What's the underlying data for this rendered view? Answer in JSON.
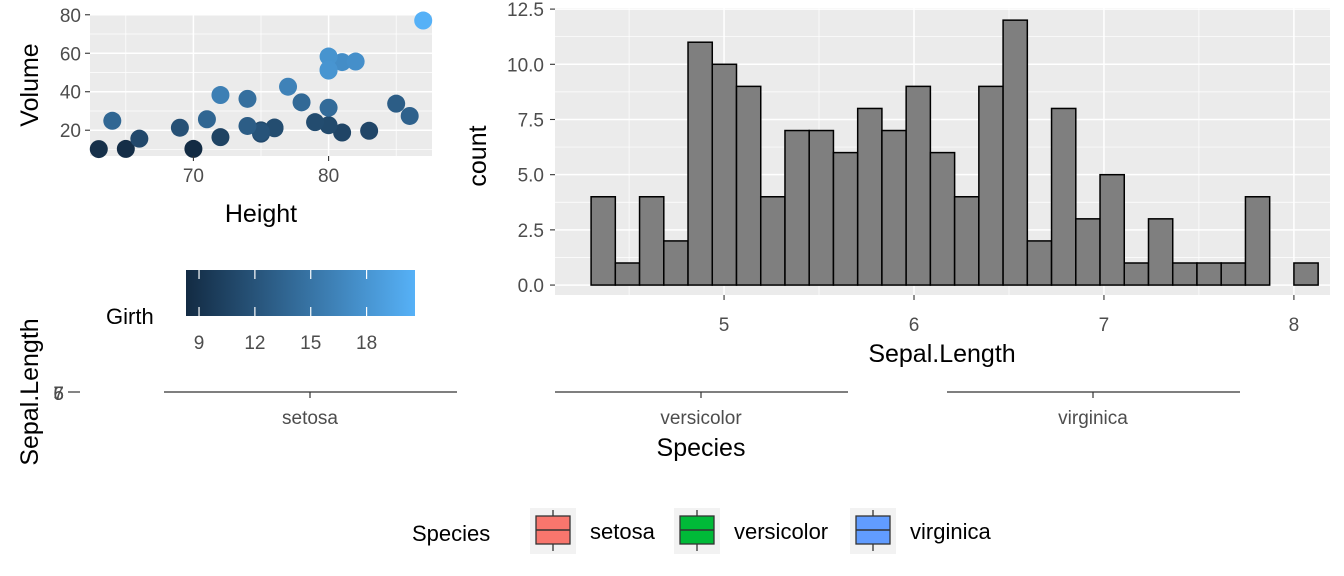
{
  "chart_data": [
    {
      "type": "scatter",
      "xlabel": "Height",
      "ylabel": "Volume",
      "xlim": [
        62,
        88
      ],
      "ylim": [
        8,
        80
      ],
      "xticks": [
        70,
        80
      ],
      "yticks": [
        20,
        40,
        60,
        80
      ],
      "grid": true,
      "color_legend": {
        "title": "Girth",
        "range": [
          8.3,
          20.6
        ],
        "ticks": [
          9,
          12,
          15,
          18
        ],
        "low_color": "#132B43",
        "high_color": "#56B1F7"
      },
      "points": [
        {
          "x": 70,
          "y": 10.3,
          "c": 8.3
        },
        {
          "x": 65,
          "y": 10.3,
          "c": 8.6
        },
        {
          "x": 63,
          "y": 10.2,
          "c": 8.8
        },
        {
          "x": 72,
          "y": 16.4,
          "c": 10.5
        },
        {
          "x": 81,
          "y": 18.8,
          "c": 10.7
        },
        {
          "x": 83,
          "y": 19.7,
          "c": 10.8
        },
        {
          "x": 66,
          "y": 15.6,
          "c": 11.0
        },
        {
          "x": 75,
          "y": 18.2,
          "c": 11.0
        },
        {
          "x": 80,
          "y": 22.6,
          "c": 11.1
        },
        {
          "x": 75,
          "y": 19.9,
          "c": 11.2
        },
        {
          "x": 79,
          "y": 24.2,
          "c": 11.3
        },
        {
          "x": 76,
          "y": 21.0,
          "c": 11.4
        },
        {
          "x": 76,
          "y": 21.4,
          "c": 11.4
        },
        {
          "x": 69,
          "y": 21.3,
          "c": 11.7
        },
        {
          "x": 75,
          "y": 19.1,
          "c": 12.0
        },
        {
          "x": 74,
          "y": 22.2,
          "c": 12.9
        },
        {
          "x": 85,
          "y": 33.8,
          "c": 12.9
        },
        {
          "x": 86,
          "y": 27.4,
          "c": 13.3
        },
        {
          "x": 71,
          "y": 25.7,
          "c": 13.7
        },
        {
          "x": 64,
          "y": 24.9,
          "c": 13.8
        },
        {
          "x": 78,
          "y": 34.5,
          "c": 14.0
        },
        {
          "x": 80,
          "y": 31.7,
          "c": 14.2
        },
        {
          "x": 74,
          "y": 36.3,
          "c": 14.5
        },
        {
          "x": 72,
          "y": 38.3,
          "c": 16.0
        },
        {
          "x": 77,
          "y": 42.6,
          "c": 16.3
        },
        {
          "x": 81,
          "y": 55.4,
          "c": 17.3
        },
        {
          "x": 82,
          "y": 55.7,
          "c": 17.5
        },
        {
          "x": 80,
          "y": 58.3,
          "c": 17.9
        },
        {
          "x": 80,
          "y": 51.5,
          "c": 18.0
        },
        {
          "x": 80,
          "y": 51.0,
          "c": 18.0
        },
        {
          "x": 87,
          "y": 77.0,
          "c": 20.6
        }
      ]
    },
    {
      "type": "bar",
      "subtype": "histogram",
      "xlabel": "Sepal.Length",
      "ylabel": "count",
      "xlim": [
        4.3,
        8.0
      ],
      "ylim": [
        0,
        12.5
      ],
      "xticks": [
        5,
        6,
        7,
        8
      ],
      "yticks": [
        0.0,
        2.5,
        5.0,
        7.5,
        10.0,
        12.5
      ],
      "grid": true,
      "bar_color": "#7f7f7f",
      "bin_start": 4.3,
      "bin_width": 0.1275862,
      "counts": [
        4,
        1,
        4,
        2,
        11,
        10,
        9,
        4,
        7,
        7,
        6,
        8,
        7,
        9,
        6,
        4,
        9,
        12,
        2,
        8,
        3,
        5,
        1,
        3,
        1,
        1,
        1,
        4,
        0,
        1
      ]
    },
    {
      "type": "box",
      "xlabel": "Species",
      "ylabel": "Sepal.Length",
      "y_tick_labels_overlapping": [
        "7",
        "6",
        "5"
      ],
      "categories": [
        "setosa",
        "versicolor",
        "virginica"
      ],
      "legend": {
        "title": "Species",
        "position": "bottom",
        "entries": [
          {
            "label": "setosa",
            "color": "#F8766D"
          },
          {
            "label": "versicolor",
            "color": "#00BA38"
          },
          {
            "label": "virginica",
            "color": "#619CFF"
          }
        ]
      }
    }
  ]
}
